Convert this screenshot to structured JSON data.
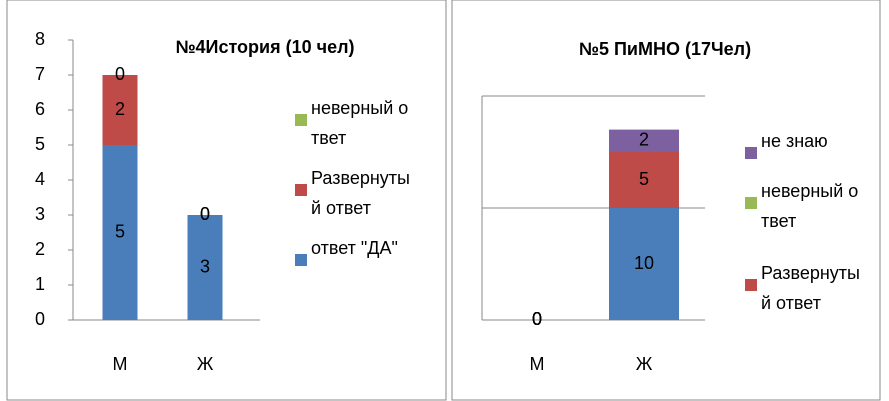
{
  "chart_data": [
    {
      "type": "bar",
      "stacked": true,
      "title": "№4История (10 чел)",
      "categories": [
        "М",
        "Ж"
      ],
      "series": [
        {
          "name": "ответ \"ДА\"",
          "color": "#4a7ebb",
          "values": [
            5,
            3
          ]
        },
        {
          "name": "Развернутый ответ",
          "color": "#be4b48",
          "values": [
            2,
            0
          ]
        },
        {
          "name": "неверный ответ",
          "color": "#98b954",
          "values": [
            0,
            0
          ]
        }
      ],
      "ylim": [
        0,
        8
      ],
      "yticks": [
        0,
        1,
        2,
        3,
        4,
        5,
        6,
        7,
        8
      ],
      "grid": false,
      "tick_labels": true,
      "legend": "right"
    },
    {
      "type": "bar",
      "stacked": true,
      "title": "№5 ПиМНО (17Чел)",
      "categories": [
        "М",
        "Ж"
      ],
      "series": [
        {
          "color": "#4a7ebb",
          "values": [
            0,
            10
          ]
        },
        {
          "name": "Развернутый ответ",
          "color": "#be4b48",
          "values": [
            0,
            5
          ]
        },
        {
          "name": "неверный ответ",
          "color": "#98b954",
          "values": [
            0,
            null
          ]
        },
        {
          "name": "не знаю",
          "color": "#7d60a0",
          "values": [
            0,
            2
          ]
        }
      ],
      "ylim": [
        0,
        20
      ],
      "yticks": [
        0,
        10,
        20
      ],
      "grid": true,
      "tick_labels": false,
      "legend": "right"
    }
  ]
}
